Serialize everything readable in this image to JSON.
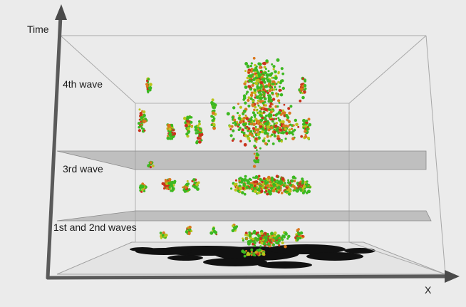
{
  "axes": {
    "time_label": "Time",
    "x_label": "X"
  },
  "layers": [
    {
      "label": "4th wave"
    },
    {
      "label": "3rd wave"
    },
    {
      "label": "1st and 2nd waves"
    }
  ],
  "colors": {
    "background": "#ebebeb",
    "box_edge": "#9a9a9a",
    "axis": "#555555",
    "plane_fill": "#9a9a9a",
    "map_fill": "#111111",
    "point_green": "#3cb821",
    "point_yellow": "#b9c41a",
    "point_orange": "#d9781e",
    "point_red": "#c9321c"
  }
}
